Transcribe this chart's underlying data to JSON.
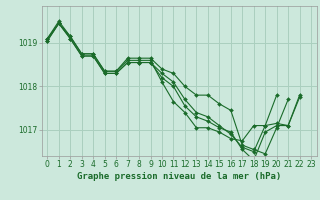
{
  "title": "Graphe pression niveau de la mer (hPa)",
  "background_color": "#cce8dc",
  "grid_color": "#aacfbf",
  "line_color": "#1a6b2a",
  "marker_color": "#1a6b2a",
  "xlim": [
    -0.5,
    23.5
  ],
  "ylim": [
    1016.4,
    1019.85
  ],
  "yticks": [
    1017,
    1018,
    1019
  ],
  "xtick_labels": [
    "0",
    "1",
    "2",
    "3",
    "4",
    "5",
    "6",
    "7",
    "8",
    "9",
    "10",
    "11",
    "12",
    "13",
    "14",
    "15",
    "16",
    "17",
    "18",
    "19",
    "20",
    "21",
    "22",
    "23"
  ],
  "series": [
    [
      1019.1,
      1019.45,
      1019.15,
      1018.75,
      1018.75,
      1018.35,
      1018.35,
      1018.6,
      1018.6,
      1018.6,
      1018.1,
      1017.65,
      1017.4,
      1017.05,
      1017.05,
      1016.95,
      1016.8,
      1016.75,
      1017.1,
      1017.1,
      1017.8,
      null,
      null,
      null
    ],
    [
      1019.1,
      1019.5,
      1019.15,
      1018.75,
      1018.75,
      1018.35,
      1018.35,
      1018.65,
      1018.65,
      1018.65,
      1018.4,
      1018.3,
      1018.0,
      1017.8,
      1017.8,
      1017.6,
      1017.45,
      1016.65,
      1016.55,
      1016.45,
      1017.05,
      1017.7,
      null,
      null
    ],
    [
      1019.05,
      1019.45,
      1019.1,
      1018.7,
      1018.7,
      1018.3,
      1018.3,
      1018.55,
      1018.55,
      1018.55,
      1018.2,
      1018.0,
      1017.55,
      1017.3,
      1017.2,
      1017.05,
      1016.95,
      1016.55,
      1016.3,
      1016.95,
      1017.1,
      1017.1,
      1017.75,
      null
    ],
    [
      1019.05,
      1019.45,
      1019.1,
      1018.7,
      1018.7,
      1018.3,
      1018.3,
      1018.55,
      1018.55,
      1018.55,
      1018.3,
      1018.1,
      1017.7,
      1017.4,
      1017.3,
      1017.1,
      1016.9,
      1016.6,
      1016.5,
      1017.1,
      1017.15,
      1017.1,
      1017.8,
      null
    ]
  ],
  "ylabel_fontsize": 5.5,
  "xlabel_fontsize": 6.5,
  "title_fontsize": 6.5
}
